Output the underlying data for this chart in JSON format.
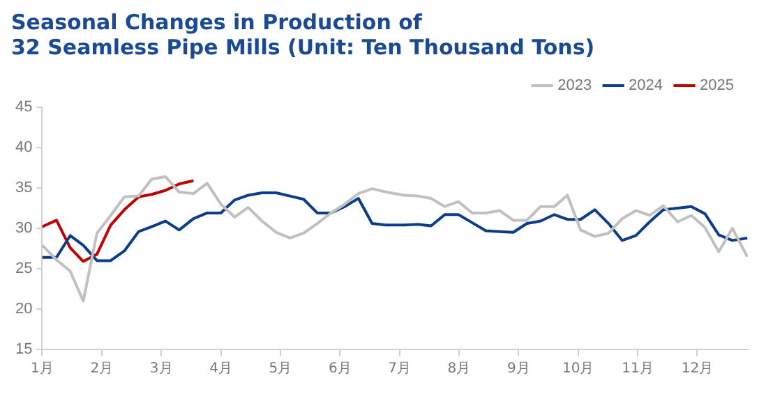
{
  "chart_data": {
    "type": "line",
    "title": "Seasonal Changes in Production of\n32 Seamless Pipe Mills (Unit: Ten Thousand Tons)",
    "xlim": [
      1,
      12.85
    ],
    "xticks": [
      {
        "value": 1,
        "label": "1月"
      },
      {
        "value": 2,
        "label": "2月"
      },
      {
        "value": 3,
        "label": "3月"
      },
      {
        "value": 4,
        "label": "4月"
      },
      {
        "value": 5,
        "label": "5月"
      },
      {
        "value": 6,
        "label": "6月"
      },
      {
        "value": 7,
        "label": "7月"
      },
      {
        "value": 8,
        "label": "8月"
      },
      {
        "value": 9,
        "label": "9月"
      },
      {
        "value": 10,
        "label": "10月"
      },
      {
        "value": 11,
        "label": "11月"
      },
      {
        "value": 12,
        "label": "12月"
      }
    ],
    "ylim": [
      15,
      45
    ],
    "yticks": [
      15,
      20,
      25,
      30,
      35,
      40,
      45
    ],
    "grid": false,
    "legend": "top right",
    "marker": "none",
    "line_style": "solid",
    "series": [
      {
        "name": "2023",
        "color": "#c0c0c0",
        "x": [
          1,
          1.24,
          1.47,
          1.69,
          1.92,
          2.15,
          2.38,
          2.62,
          2.84,
          3.07,
          3.3,
          3.54,
          3.77,
          4,
          4.23,
          4.46,
          4.69,
          4.93,
          5.16,
          5.39,
          5.62,
          5.85,
          6.08,
          6.31,
          6.54,
          6.77,
          7.08,
          7.31,
          7.53,
          7.76,
          7.99,
          8.22,
          8.45,
          8.68,
          8.91,
          9.14,
          9.37,
          9.6,
          9.82,
          10.04,
          10.28,
          10.51,
          10.74,
          10.97,
          11.2,
          11.43,
          11.67,
          11.9,
          12.13,
          12.36,
          12.59,
          12.84
        ],
        "values": [
          27.9,
          26.1,
          24.7,
          21,
          29.4,
          31.6,
          33.9,
          34,
          36.1,
          36.4,
          34.5,
          34.3,
          35.6,
          33,
          31.4,
          32.6,
          30.9,
          29.5,
          28.8,
          29.4,
          30.6,
          31.9,
          33,
          34.3,
          34.9,
          34.5,
          34.1,
          34,
          33.7,
          32.7,
          33.3,
          31.9,
          31.9,
          32.2,
          31,
          31,
          32.7,
          32.7,
          34.1,
          29.8,
          29,
          29.4,
          31.2,
          32.2,
          31.6,
          32.8,
          30.8,
          31.6,
          30.1,
          27.1,
          30,
          26.5
        ]
      },
      {
        "name": "2024",
        "color": "#0b3d8c",
        "x": [
          1,
          1.24,
          1.47,
          1.69,
          1.92,
          2.15,
          2.38,
          2.62,
          2.84,
          3.07,
          3.3,
          3.54,
          3.77,
          4,
          4.23,
          4.46,
          4.69,
          4.93,
          5.16,
          5.39,
          5.62,
          5.85,
          6.08,
          6.31,
          6.54,
          6.77,
          7.08,
          7.31,
          7.53,
          7.76,
          7.99,
          8.22,
          8.45,
          8.68,
          8.91,
          9.14,
          9.37,
          9.6,
          9.82,
          10.04,
          10.28,
          10.51,
          10.74,
          10.97,
          11.2,
          11.43,
          11.67,
          11.9,
          12.13,
          12.36,
          12.59,
          12.84
        ],
        "values": [
          26.4,
          26.4,
          29.1,
          27.9,
          26,
          26,
          27.2,
          29.6,
          30.2,
          30.9,
          29.8,
          31.2,
          31.9,
          31.9,
          33.5,
          34.1,
          34.4,
          34.4,
          34,
          33.6,
          31.9,
          31.9,
          32.7,
          33.7,
          30.6,
          30.4,
          30.4,
          30.5,
          30.3,
          31.7,
          31.7,
          30.7,
          29.7,
          29.6,
          29.5,
          30.6,
          30.9,
          31.7,
          31.1,
          31.1,
          32.3,
          30.6,
          28.5,
          29.1,
          30.8,
          32.3,
          32.5,
          32.7,
          31.8,
          29.2,
          28.5,
          28.8
        ]
      },
      {
        "name": "2025",
        "color": "#c00000",
        "x": [
          1,
          1.24,
          1.47,
          1.69,
          1.92,
          2.15,
          2.38,
          2.62,
          2.84,
          3.07,
          3.3,
          3.54
        ],
        "values": [
          30.2,
          31,
          27.6,
          25.9,
          26.8,
          30.4,
          32.3,
          33.9,
          34.2,
          34.7,
          35.5,
          35.9
        ]
      }
    ]
  }
}
